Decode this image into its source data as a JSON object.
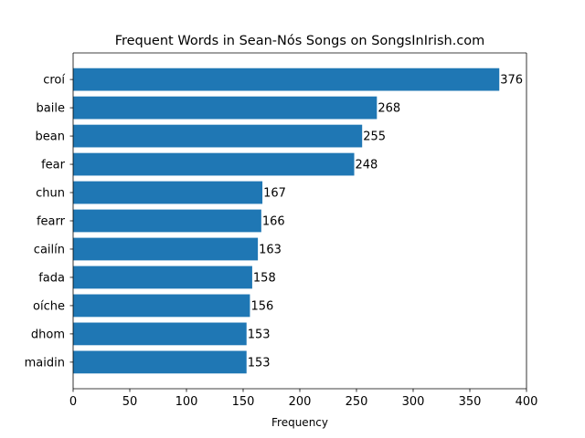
{
  "chart_data": {
    "type": "bar",
    "orientation": "horizontal",
    "title": "Frequent Words in Sean-Nós Songs on SongsInIrish.com",
    "xlabel": "Frequency",
    "ylabel": "",
    "categories": [
      "croí",
      "baile",
      "bean",
      "fear",
      "chun",
      "fearr",
      "cailín",
      "fada",
      "oíche",
      "dhom",
      "maidin"
    ],
    "values": [
      376,
      268,
      255,
      248,
      167,
      166,
      163,
      158,
      156,
      153,
      153
    ],
    "xlim": [
      0,
      400
    ],
    "xticks": [
      0,
      50,
      100,
      150,
      200,
      250,
      300,
      350,
      400
    ],
    "data_labels": true,
    "grid": false,
    "legend": "none",
    "bar_color": "#1f77b4"
  }
}
